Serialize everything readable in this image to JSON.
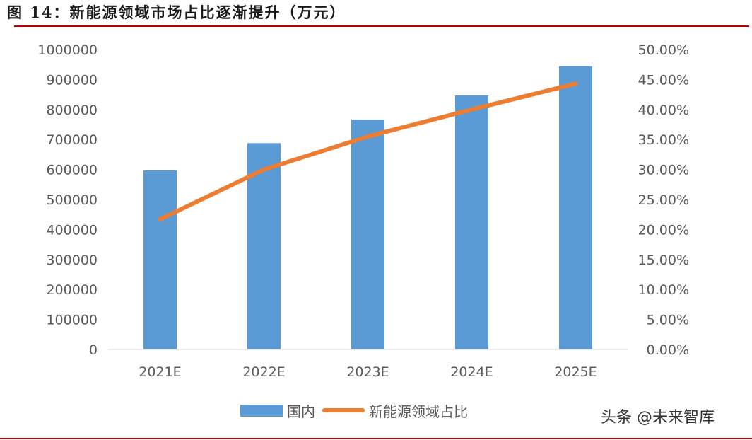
{
  "title": "图 14：新能源领域市场占比逐渐提升（万元）",
  "watermark": "头条 @未来智库",
  "chart_data": {
    "type": "bar",
    "categories": [
      "2021E",
      "2022E",
      "2023E",
      "2024E",
      "2025E"
    ],
    "series": [
      {
        "name": "国内",
        "type": "bar",
        "axis": "left",
        "color": "#5b9bd5",
        "values": [
          597000,
          688000,
          766000,
          847000,
          944000
        ]
      },
      {
        "name": "新能源领域占比",
        "type": "line",
        "axis": "right",
        "color": "#ed7d31",
        "values": [
          0.217,
          0.3,
          0.355,
          0.4,
          0.443
        ]
      }
    ],
    "y_left": {
      "min": 0,
      "max": 1000000,
      "step": 100000,
      "tick_labels": [
        "0",
        "100000",
        "200000",
        "300000",
        "400000",
        "500000",
        "600000",
        "700000",
        "800000",
        "900000",
        "1000000"
      ]
    },
    "y_right": {
      "min": 0,
      "max": 0.5,
      "step": 0.05,
      "tick_labels": [
        "0.00%",
        "5.00%",
        "10.00%",
        "15.00%",
        "20.00%",
        "25.00%",
        "30.00%",
        "35.00%",
        "40.00%",
        "45.00%",
        "50.00%"
      ]
    },
    "grid": false,
    "legend_position": "bottom"
  }
}
